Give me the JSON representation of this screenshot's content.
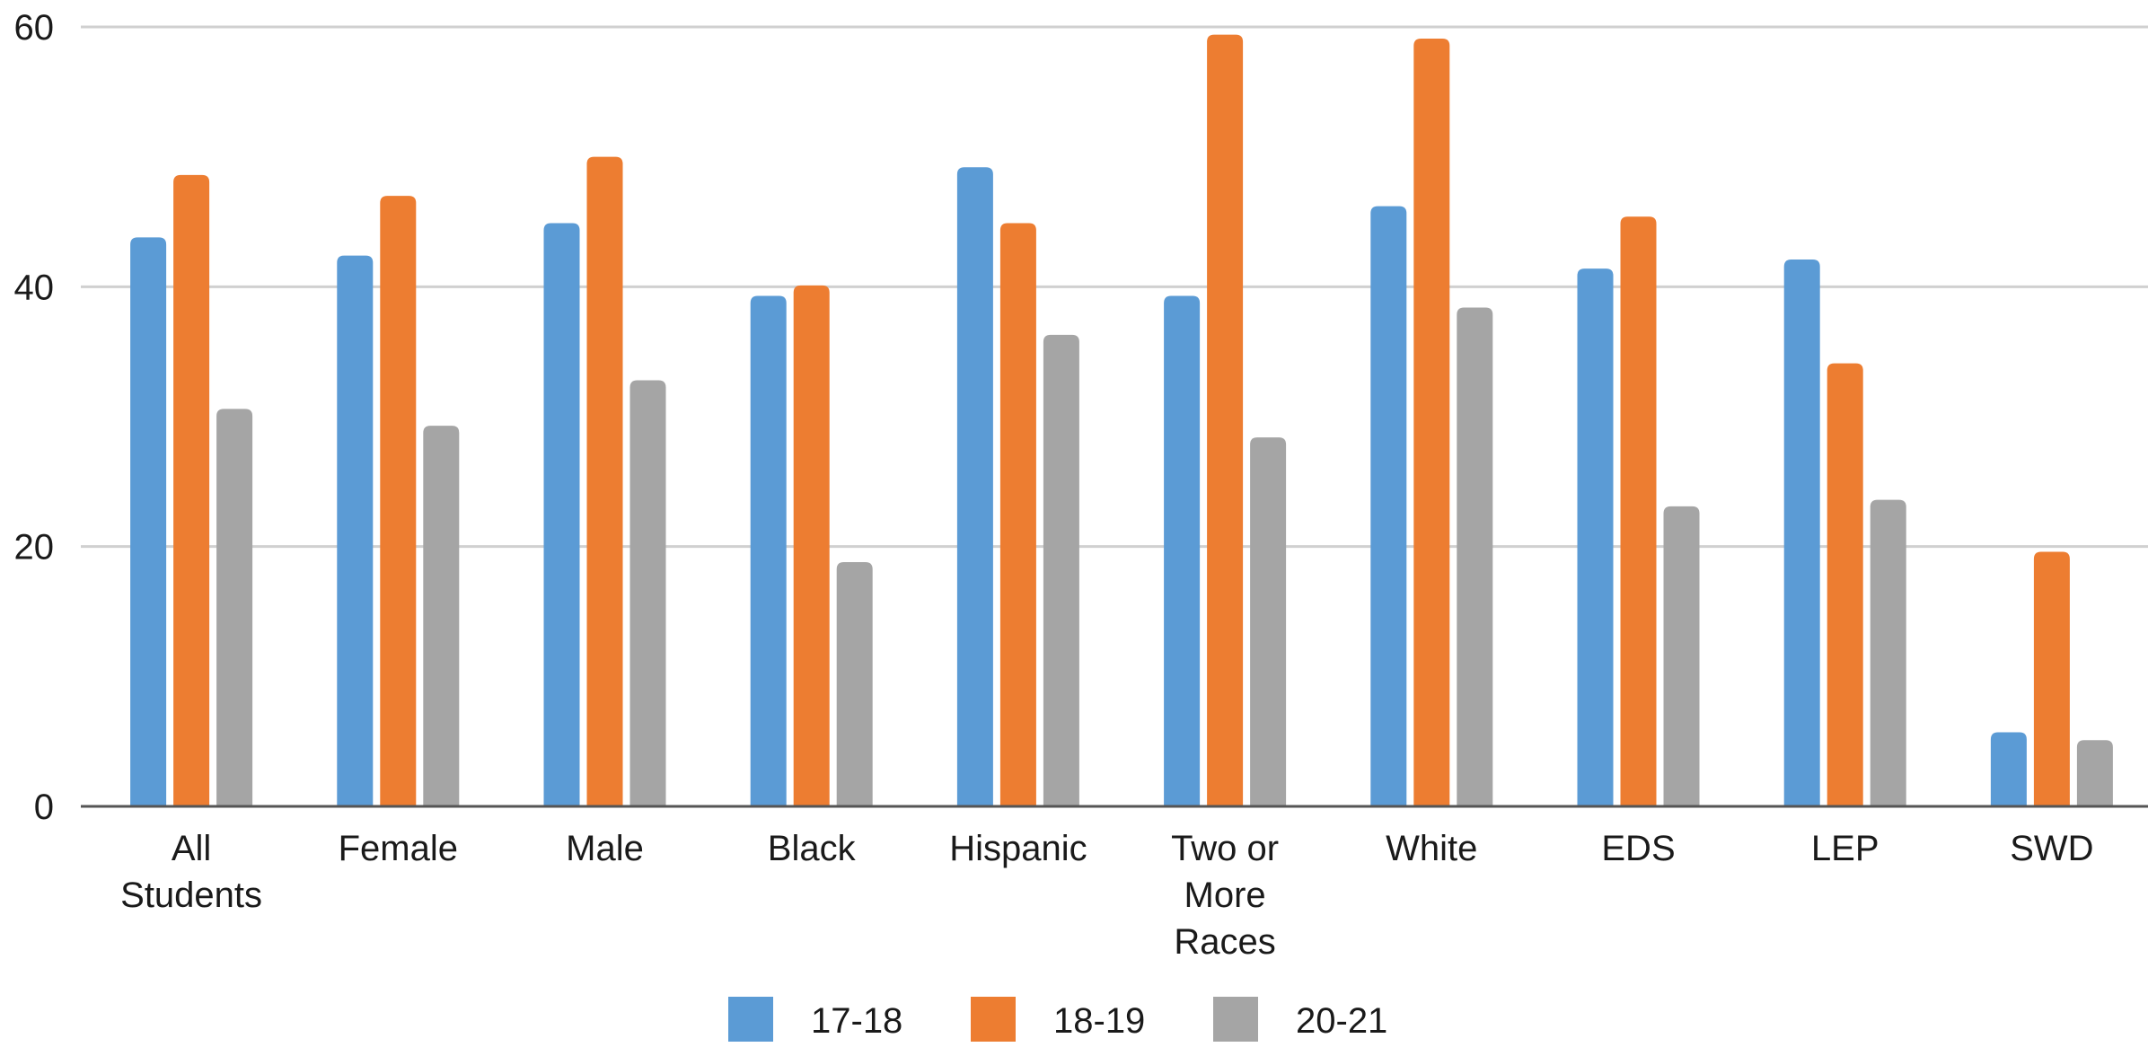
{
  "chart_data": {
    "type": "bar",
    "title": "",
    "xlabel": "",
    "ylabel": "",
    "ylim": [
      0,
      60
    ],
    "yticks": [
      0,
      20,
      40,
      60
    ],
    "grid": true,
    "legend_position": "bottom-center",
    "categories": [
      [
        "All",
        "Students"
      ],
      [
        "Female"
      ],
      [
        "Male"
      ],
      [
        "Black"
      ],
      [
        "Hispanic"
      ],
      [
        "Two or",
        "More",
        "Races"
      ],
      [
        "White"
      ],
      [
        "EDS"
      ],
      [
        "LEP"
      ],
      [
        "SWD"
      ]
    ],
    "series": [
      {
        "name": "17-18",
        "color": "#5b9bd5",
        "values": [
          43.8,
          42.4,
          44.9,
          39.3,
          49.2,
          39.3,
          46.2,
          41.4,
          42.1,
          5.7
        ]
      },
      {
        "name": "18-19",
        "color": "#ed7d31",
        "values": [
          48.6,
          47.0,
          50.0,
          40.1,
          44.9,
          59.4,
          59.1,
          45.4,
          34.1,
          19.6
        ]
      },
      {
        "name": "20-21",
        "color": "#a5a5a5",
        "values": [
          30.6,
          29.3,
          32.8,
          18.8,
          36.3,
          28.4,
          38.4,
          23.1,
          23.6,
          5.1
        ]
      }
    ]
  }
}
